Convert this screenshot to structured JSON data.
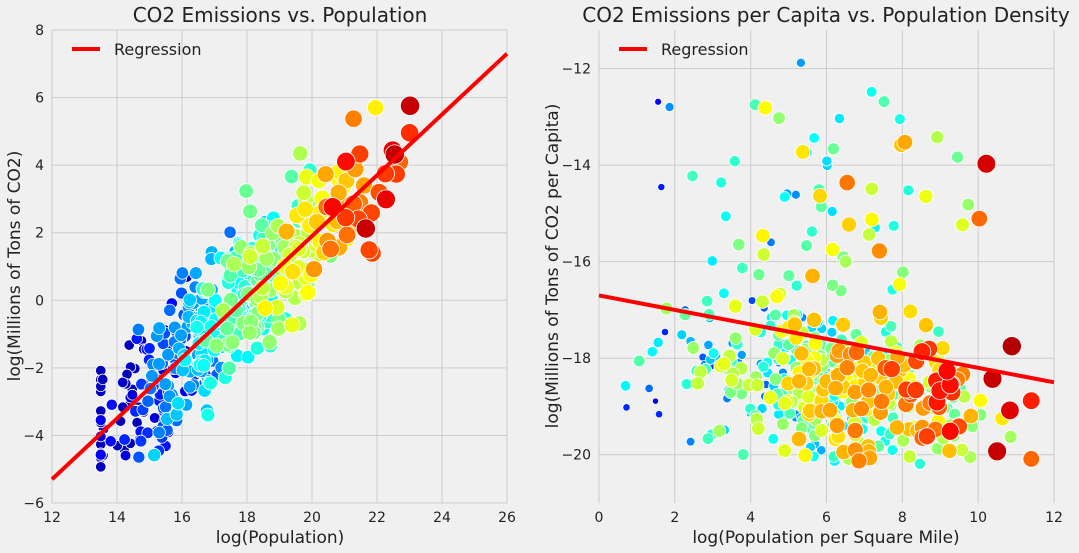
{
  "chart_data": [
    {
      "type": "scatter",
      "title": "CO2 Emissions vs. Population",
      "xlabel": "log(Population)",
      "ylabel": "log(Millions of Tons of CO2)",
      "xlim": [
        12,
        26
      ],
      "ylim": [
        -6,
        8
      ],
      "xticks": [
        "12",
        "14",
        "16",
        "18",
        "20",
        "22",
        "24",
        "26"
      ],
      "yticks": [
        "−6",
        "−4",
        "−2",
        "0",
        "2",
        "4",
        "6",
        "8"
      ],
      "xtick_values": [
        12,
        14,
        16,
        18,
        20,
        22,
        24,
        26
      ],
      "ytick_values": [
        -6,
        -4,
        -2,
        0,
        2,
        4,
        6,
        8
      ],
      "grid": true,
      "legend": {
        "position": "top-left",
        "entries": [
          "Regression"
        ]
      },
      "regression": {
        "slope": 0.9,
        "intercept": -16.1,
        "color": "#ff0000"
      },
      "color_scale": [
        "#00008f",
        "#0000ff",
        "#0080ff",
        "#00ffff",
        "#80ff80",
        "#ffff00",
        "#ff8000",
        "#ff0000",
        "#800000"
      ]
    },
    {
      "type": "scatter",
      "title": "CO2 Emissions per Capita vs. Population Density",
      "xlabel": "log(Population per Square Mile)",
      "ylabel": "log(Millions of Tons of CO2 per Capita)",
      "xlim": [
        0,
        12
      ],
      "ylim": [
        -21,
        -11.2
      ],
      "xticks": [
        "0",
        "2",
        "4",
        "6",
        "8",
        "10",
        "12"
      ],
      "yticks": [
        "−20",
        "−18",
        "−16",
        "−14",
        "−12"
      ],
      "xtick_values": [
        0,
        2,
        4,
        6,
        8,
        10,
        12
      ],
      "ytick_values": [
        -20,
        -18,
        -16,
        -14,
        -12
      ],
      "grid": true,
      "legend": {
        "position": "top-left",
        "entries": [
          "Regression"
        ]
      },
      "regression": {
        "slope": -0.15,
        "intercept": -16.7,
        "color": "#ff0000"
      },
      "color_scale": [
        "#00008f",
        "#0000ff",
        "#0080ff",
        "#00ffff",
        "#80ff80",
        "#ffff00",
        "#ff8000",
        "#ff0000",
        "#800000"
      ]
    }
  ]
}
